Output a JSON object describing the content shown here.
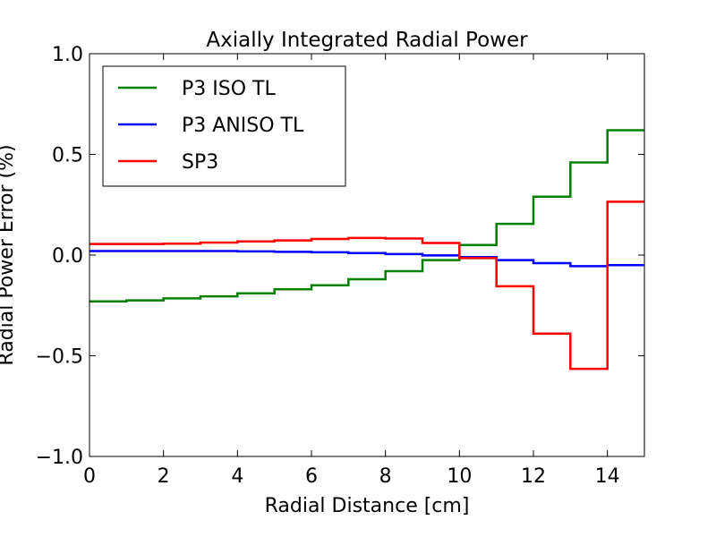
{
  "chart_data": {
    "type": "line",
    "title": "Axially Integrated Radial Power",
    "xlabel": "Radial Distance [cm]",
    "ylabel": "Radial Power Error (%)",
    "xlim": [
      0,
      15
    ],
    "ylim": [
      -1.0,
      1.0
    ],
    "xticks": [
      "0",
      "2",
      "4",
      "6",
      "8",
      "10",
      "12",
      "14"
    ],
    "yticks": [
      "−1.0",
      "−0.5",
      "0.0",
      "0.5",
      "1.0"
    ],
    "grid": false,
    "legend_position": "top-left",
    "step": "post",
    "x": [
      0,
      1,
      2,
      3,
      4,
      5,
      6,
      7,
      8,
      9,
      10,
      11,
      12,
      13,
      14
    ],
    "series": [
      {
        "name": "P3 ISO TL",
        "color": "#008000",
        "values": [
          -0.23,
          -0.225,
          -0.215,
          -0.205,
          -0.19,
          -0.17,
          -0.15,
          -0.12,
          -0.08,
          -0.025,
          0.05,
          0.155,
          0.29,
          0.46,
          0.62
        ]
      },
      {
        "name": "P3 ANISO TL",
        "color": "#0000ff",
        "values": [
          0.02,
          0.02,
          0.02,
          0.02,
          0.018,
          0.016,
          0.014,
          0.01,
          0.005,
          -0.002,
          -0.01,
          -0.025,
          -0.04,
          -0.055,
          -0.05
        ]
      },
      {
        "name": "SP3",
        "color": "#ff0000",
        "values": [
          0.055,
          0.055,
          0.057,
          0.062,
          0.068,
          0.073,
          0.08,
          0.085,
          0.082,
          0.06,
          -0.015,
          -0.155,
          -0.39,
          -0.565,
          0.265
        ]
      }
    ]
  }
}
